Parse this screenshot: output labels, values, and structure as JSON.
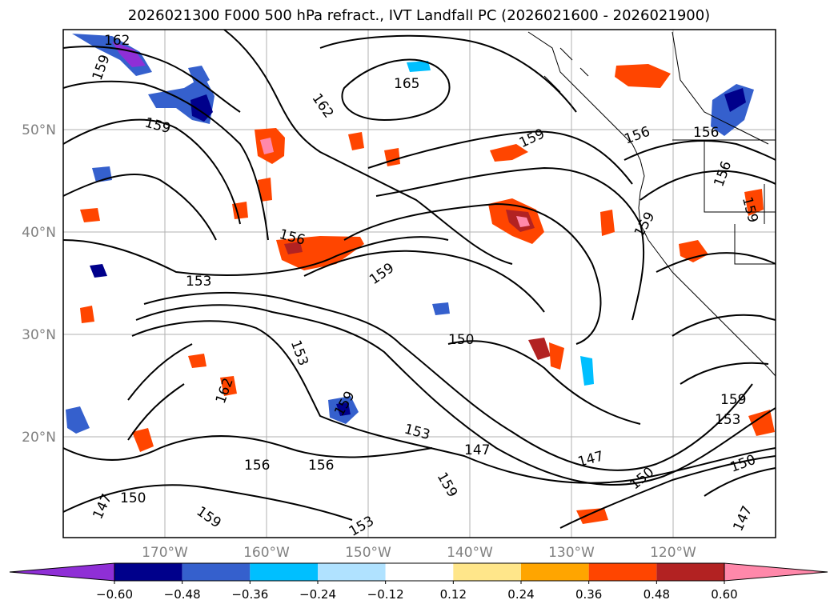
{
  "title": "2026021300 F000 500 hPa refract., IVT Landfall PC (2026021600 - 2026021900)",
  "lat_labels": [
    "50°N",
    "40°N",
    "30°N",
    "20°N"
  ],
  "lon_labels": [
    "170°W",
    "160°W",
    "150°W",
    "140°W",
    "130°W",
    "120°W"
  ],
  "contour_labels": [
    "162",
    "159",
    "165",
    "162",
    "159",
    "159",
    "156",
    "156",
    "156",
    "159",
    "156",
    "153",
    "159",
    "159",
    "153",
    "150",
    "162",
    "159",
    "153",
    "147",
    "147",
    "150",
    "156",
    "156",
    "150",
    "159",
    "153",
    "150",
    "147",
    "159",
    "153",
    "159",
    "147"
  ],
  "colorbar": {
    "colors": [
      "#8f2fd6",
      "#00008b",
      "#3560cd",
      "#00bfff",
      "#b0e2ff",
      "#ffffff",
      "#ffe68a",
      "#ffa500",
      "#ff4500",
      "#b22222",
      "#ff88aa"
    ],
    "extend_min": "#8f2fd6",
    "extend_max": "#ff88aa",
    "tick_labels": [
      "−0.60",
      "−0.48",
      "−0.36",
      "−0.24",
      "−0.12",
      "0.12",
      "0.24",
      "0.36",
      "0.48",
      "0.60"
    ]
  }
}
